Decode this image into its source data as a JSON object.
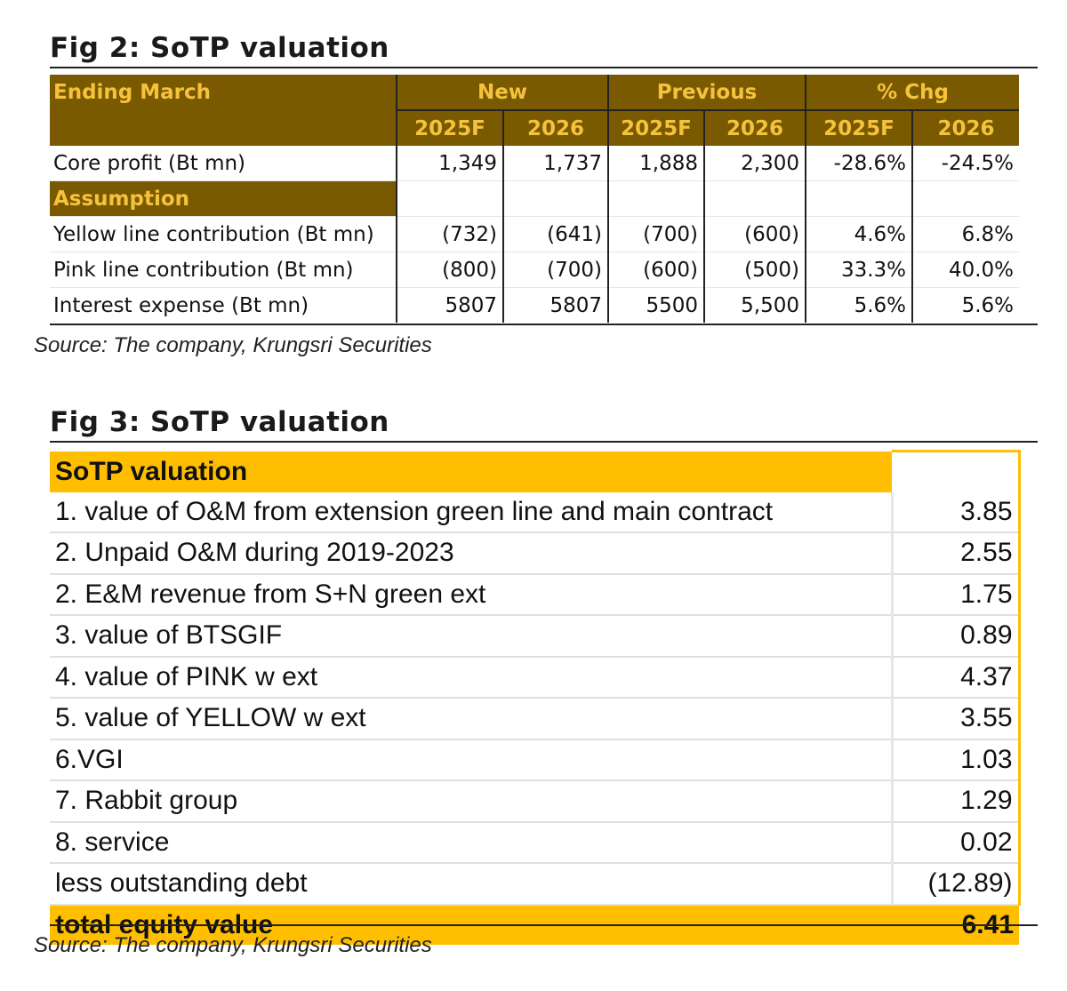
{
  "fig2": {
    "title": "Fig 2: SoTP valuation",
    "header": {
      "ending_march": "Ending March",
      "groups": [
        "New",
        "Previous",
        "% Chg"
      ],
      "years": [
        "2025F",
        "2026",
        "2025F",
        "2026",
        "2025F",
        "2026"
      ]
    },
    "core_profit": {
      "label": "Core profit (Bt mn)",
      "values": [
        "1,349",
        "1,737",
        "1,888",
        "2,300",
        "-28.6%",
        "-24.5%"
      ]
    },
    "assumption_label": "Assumption",
    "rows": [
      {
        "label": "Yellow line contribution (Bt mn)",
        "values": [
          "(732)",
          "(641)",
          "(700)",
          "(600)",
          "4.6%",
          "6.8%"
        ]
      },
      {
        "label": "Pink line contribution (Bt mn)",
        "values": [
          "(800)",
          "(700)",
          "(600)",
          "(500)",
          "33.3%",
          "40.0%"
        ]
      },
      {
        "label": "Interest expense (Bt mn)",
        "values": [
          "5807",
          "5807",
          "5500",
          "5,500",
          "5.6%",
          "5.6%"
        ]
      }
    ],
    "source": "Source: The company, Krungsri Securities"
  },
  "fig3": {
    "title": "Fig 3: SoTP valuation",
    "header": "SoTP valuation",
    "items": [
      {
        "label": "1. value of O&M from extension green line and main contract",
        "value": "3.85"
      },
      {
        "label": "2. Unpaid O&M during 2019-2023",
        "value": "2.55"
      },
      {
        "label": "2. E&M revenue from S+N green ext",
        "value": "1.75"
      },
      {
        "label": "3. value of BTSGIF",
        "value": "0.89"
      },
      {
        "label": "4. value of PINK w ext",
        "value": "4.37"
      },
      {
        "label": "5. value of YELLOW w ext",
        "value": "3.55"
      },
      {
        "label": "6.VGI",
        "value": "1.03"
      },
      {
        "label": "7. Rabbit group",
        "value": "1.29"
      },
      {
        "label": "8. service",
        "value": "0.02"
      },
      {
        "label": "less outstanding debt",
        "value": "(12.89)"
      }
    ],
    "total": {
      "label": "total equity value",
      "value": "6.41"
    },
    "source": "Source: The company, Krungsri Securities"
  },
  "colors": {
    "dark_gold": "#7a5a00",
    "gold_text": "#f5c23c",
    "amber": "#ffbf00"
  }
}
